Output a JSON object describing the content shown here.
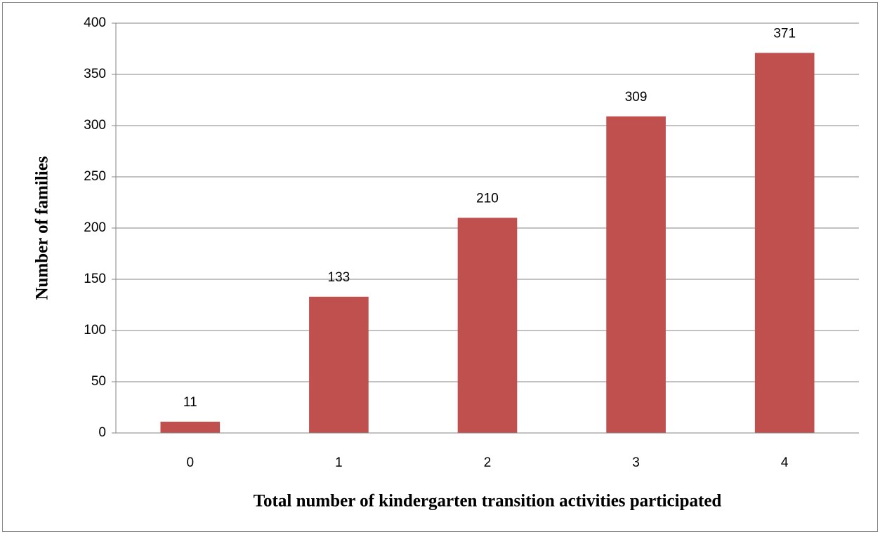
{
  "chart_data": {
    "type": "bar",
    "xlabel": "Total number of kindergarten transition activities participated",
    "ylabel": "Number of families",
    "categories": [
      "0",
      "1",
      "2",
      "3",
      "4"
    ],
    "values": [
      11,
      133,
      210,
      309,
      371
    ],
    "color": "#c0504d",
    "ylim": [
      0,
      400
    ],
    "yticks": [
      0,
      50,
      100,
      150,
      200,
      250,
      300,
      350,
      400
    ],
    "grid": true
  }
}
